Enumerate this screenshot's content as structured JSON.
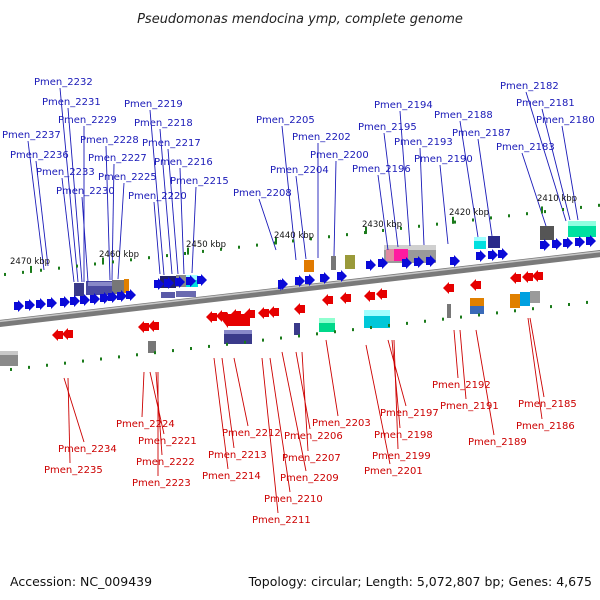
{
  "title": "Pseudomonas mendocina ymp, complete genome",
  "footer": {
    "accession": "Accession: NC_009439",
    "summary": "Topology: circular; Length: 5,072,807 bp; Genes: 4,675"
  },
  "colors": {
    "forward": "#0a0ad8",
    "reverse": "#e60000",
    "backbone": "#7a7a7a",
    "tick": "#1a7a1a"
  },
  "scale_labels": [
    "2470 kbp",
    "2460 kbp",
    "2450 kbp",
    "2440 kbp",
    "2430 kbp",
    "2420 kbp",
    "2410 kbp"
  ],
  "top_genes": [
    "Pmen_2232",
    "Pmen_2231",
    "Pmen_2229",
    "Pmen_2237",
    "Pmen_2228",
    "Pmen_2236",
    "Pmen_2227",
    "Pmen_2233",
    "Pmen_2225",
    "Pmen_2230",
    "Pmen_2219",
    "Pmen_2218",
    "Pmen_2217",
    "Pmen_2216",
    "Pmen_2215",
    "Pmen_2220",
    "Pmen_2205",
    "Pmen_2202",
    "Pmen_2200",
    "Pmen_2204",
    "Pmen_2208",
    "Pmen_2194",
    "Pmen_2195",
    "Pmen_2193",
    "Pmen_2196",
    "Pmen_2190",
    "Pmen_2188",
    "Pmen_2187",
    "Pmen_2183",
    "Pmen_2182",
    "Pmen_2181",
    "Pmen_2180"
  ],
  "bottom_genes": [
    "Pmen_2224",
    "Pmen_2221",
    "Pmen_2234",
    "Pmen_2222",
    "Pmen_2235",
    "Pmen_2223",
    "Pmen_2212",
    "Pmen_2213",
    "Pmen_2214",
    "Pmen_2206",
    "Pmen_2207",
    "Pmen_2209",
    "Pmen_2210",
    "Pmen_2211",
    "Pmen_2203",
    "Pmen_2201",
    "Pmen_2197",
    "Pmen_2198",
    "Pmen_2199",
    "Pmen_2192",
    "Pmen_2191",
    "Pmen_2189",
    "Pmen_2185",
    "Pmen_2186"
  ]
}
